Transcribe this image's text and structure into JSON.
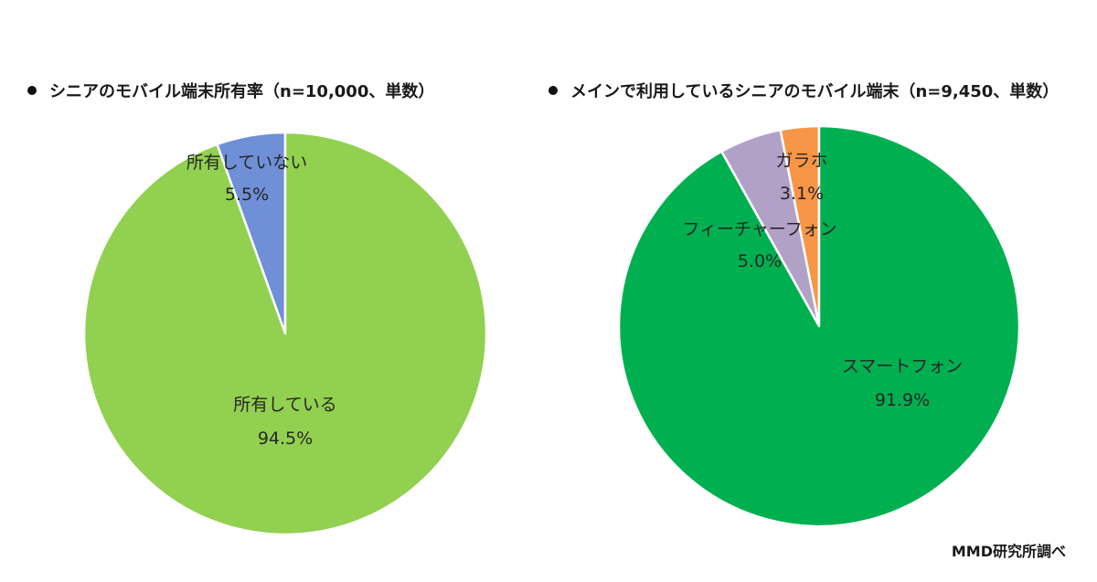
{
  "chart_data": [
    {
      "type": "pie",
      "title": "シニアのモバイル端末所有率（n=10,000、単数）",
      "slices": [
        {
          "label": "所有していない",
          "value": 5.5,
          "value_label": "5.5%",
          "color": "#6f8fd6"
        },
        {
          "label": "所有している",
          "value": 94.5,
          "value_label": "94.5%",
          "color": "#92d050"
        }
      ]
    },
    {
      "type": "pie",
      "title": "メインで利用しているシニアのモバイル端末（n=9,450、単数）",
      "slices": [
        {
          "label": "ガラホ",
          "value": 3.1,
          "value_label": "3.1%",
          "color": "#f79646"
        },
        {
          "label": "フィーチャーフォン",
          "value": 5.0,
          "value_label": "5.0%",
          "color": "#b2a1c7"
        },
        {
          "label": "スマートフォン",
          "value": 91.9,
          "value_label": "91.9%",
          "color": "#00b050"
        }
      ]
    }
  ],
  "source": "MMD研究所調べ"
}
